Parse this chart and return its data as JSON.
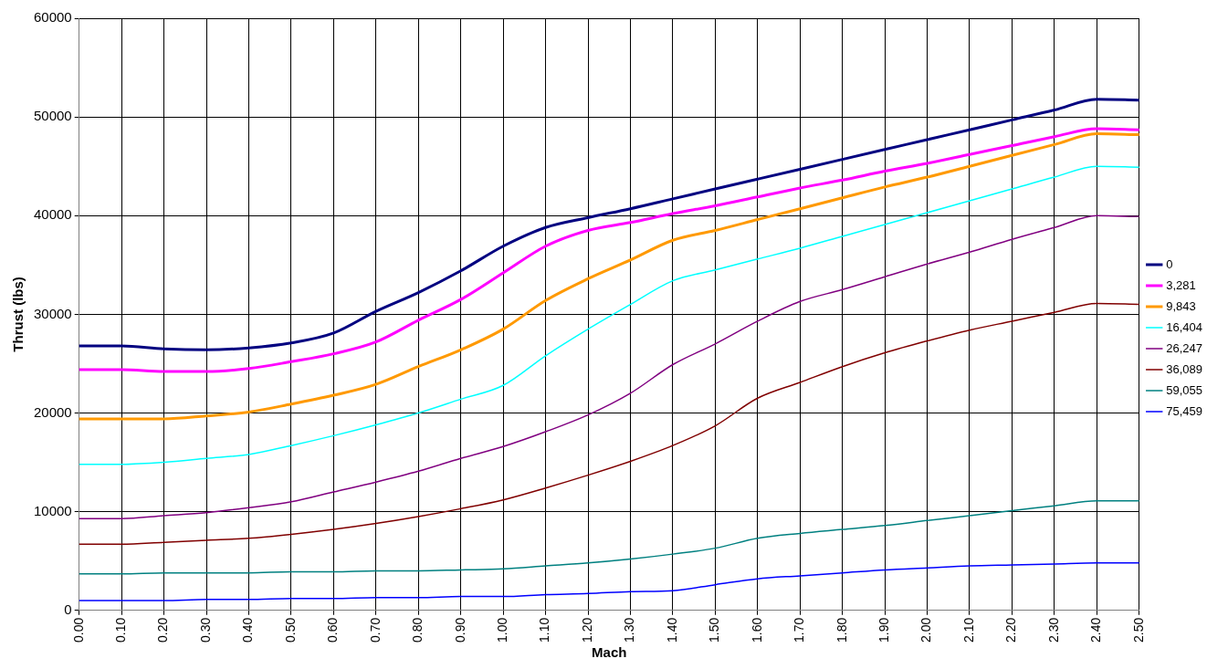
{
  "chart_data": {
    "type": "line",
    "xlabel": "Mach",
    "ylabel": "Thrust (lbs)",
    "legend": "right",
    "grid": true,
    "marker": "none",
    "line_style": "solid",
    "x": [
      0,
      0.1,
      0.2,
      0.3,
      0.4,
      0.5,
      0.6,
      0.7,
      0.8,
      0.9,
      1.0,
      1.1,
      1.2,
      1.3,
      1.4,
      1.5,
      1.6,
      1.7,
      1.8,
      1.9,
      2.0,
      2.1,
      2.2,
      2.3,
      2.4,
      2.5
    ],
    "xlim": [
      0,
      2.5
    ],
    "xticks": [
      {
        "value": 0,
        "label": "0.00"
      },
      {
        "value": 0.1,
        "label": "0.10"
      },
      {
        "value": 0.2,
        "label": "0.20"
      },
      {
        "value": 0.3,
        "label": "0.30"
      },
      {
        "value": 0.4,
        "label": "0.40"
      },
      {
        "value": 0.5,
        "label": "0.50"
      },
      {
        "value": 0.6,
        "label": "0.60"
      },
      {
        "value": 0.7,
        "label": "0.70"
      },
      {
        "value": 0.8,
        "label": "0.80"
      },
      {
        "value": 0.9,
        "label": "0.90"
      },
      {
        "value": 1.0,
        "label": "1.00"
      },
      {
        "value": 1.1,
        "label": "1.10"
      },
      {
        "value": 1.2,
        "label": "1.20"
      },
      {
        "value": 1.3,
        "label": "1.30"
      },
      {
        "value": 1.4,
        "label": "1.40"
      },
      {
        "value": 1.5,
        "label": "1.50"
      },
      {
        "value": 1.6,
        "label": "1.60"
      },
      {
        "value": 1.7,
        "label": "1.70"
      },
      {
        "value": 1.8,
        "label": "1.80"
      },
      {
        "value": 1.9,
        "label": "1.90"
      },
      {
        "value": 2.0,
        "label": "2.00"
      },
      {
        "value": 2.1,
        "label": "2.10"
      },
      {
        "value": 2.2,
        "label": "2.20"
      },
      {
        "value": 2.3,
        "label": "2.30"
      },
      {
        "value": 2.4,
        "label": "2.40"
      },
      {
        "value": 2.5,
        "label": "2.50"
      }
    ],
    "ylim": [
      0,
      60000
    ],
    "yticks": [
      0,
      10000,
      20000,
      30000,
      40000,
      50000,
      60000
    ],
    "series": [
      {
        "name": "0",
        "color": "#000080",
        "values": [
          26800,
          26800,
          26500,
          26400,
          26600,
          27100,
          28100,
          30300,
          32200,
          34400,
          36900,
          38800,
          39800,
          40700,
          41700,
          42700,
          43700,
          44700,
          45700,
          46700,
          47700,
          48700,
          49700,
          50700,
          51800,
          51700
        ]
      },
      {
        "name": "3,281",
        "color": "#ff00ff",
        "values": [
          24400,
          24400,
          24200,
          24200,
          24500,
          25200,
          26000,
          27200,
          29400,
          31500,
          34200,
          36900,
          38500,
          39300,
          40200,
          41000,
          41900,
          42800,
          43600,
          44500,
          45300,
          46200,
          47100,
          48000,
          48800,
          48700
        ]
      },
      {
        "name": "9,843",
        "color": "#ff9900",
        "values": [
          19400,
          19400,
          19400,
          19700,
          20100,
          20900,
          21800,
          22900,
          24700,
          26400,
          28500,
          31400,
          33600,
          35500,
          37500,
          38500,
          39600,
          40700,
          41800,
          42900,
          43900,
          45000,
          46100,
          47200,
          48300,
          48200
        ]
      },
      {
        "name": "16,404",
        "color": "#00ffff",
        "values": [
          14800,
          14800,
          15000,
          15400,
          15800,
          16700,
          17700,
          18800,
          20000,
          21400,
          22800,
          25800,
          28500,
          31000,
          33400,
          34500,
          35600,
          36700,
          37900,
          39100,
          40300,
          41500,
          42700,
          43900,
          45000,
          44900
        ]
      },
      {
        "name": "26,247",
        "color": "#800080",
        "values": [
          9300,
          9300,
          9600,
          9900,
          10400,
          11000,
          12000,
          13000,
          14100,
          15400,
          16600,
          18100,
          19800,
          22000,
          24900,
          27000,
          29300,
          31300,
          32500,
          33800,
          35100,
          36300,
          37600,
          38800,
          40000,
          39900
        ]
      },
      {
        "name": "36,089",
        "color": "#800000",
        "values": [
          6700,
          6700,
          6900,
          7100,
          7300,
          7700,
          8200,
          8800,
          9500,
          10300,
          11200,
          12400,
          13700,
          15100,
          16700,
          18700,
          21500,
          23100,
          24700,
          26100,
          27300,
          28400,
          29300,
          30200,
          31100,
          31000
        ]
      },
      {
        "name": "59,055",
        "color": "#008080",
        "values": [
          3700,
          3700,
          3800,
          3800,
          3800,
          3900,
          3900,
          4000,
          4000,
          4100,
          4200,
          4500,
          4800,
          5200,
          5700,
          6300,
          7300,
          7800,
          8200,
          8600,
          9100,
          9600,
          10100,
          10600,
          11100,
          11100
        ]
      },
      {
        "name": "75,459",
        "color": "#0000ff",
        "values": [
          1000,
          1000,
          1000,
          1100,
          1100,
          1200,
          1200,
          1300,
          1300,
          1400,
          1400,
          1600,
          1700,
          1900,
          2000,
          2600,
          3200,
          3500,
          3800,
          4100,
          4300,
          4500,
          4600,
          4700,
          4800,
          4800
        ]
      }
    ]
  }
}
